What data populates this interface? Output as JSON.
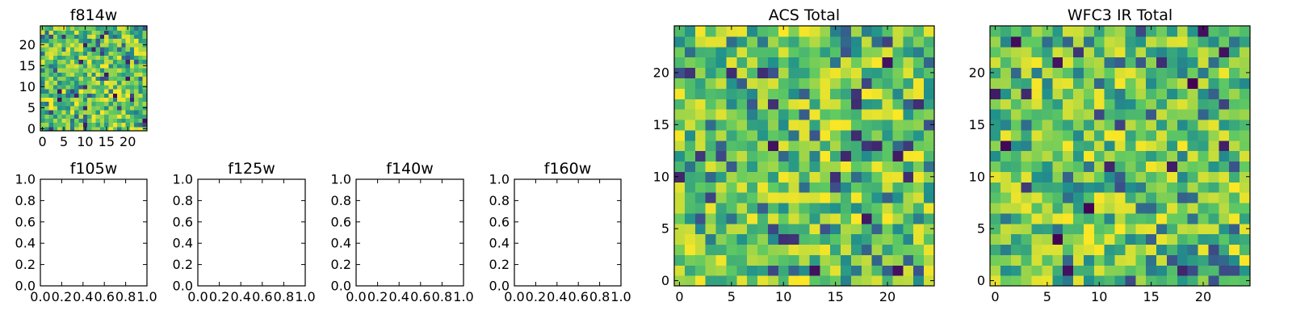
{
  "figure": {
    "background": "#ffffff",
    "colormap": "viridis",
    "colormap_stops": [
      "#440154",
      "#3b528b",
      "#21918c",
      "#5ec962",
      "#fde725"
    ]
  },
  "chart_data": [
    {
      "type": "heatmap",
      "title": "f814w",
      "xlim": [
        -0.5,
        24.5
      ],
      "ylim": [
        -0.5,
        24.5
      ],
      "xticks": [
        0,
        5,
        10,
        15,
        20
      ],
      "yticks": [
        0,
        5,
        10,
        15,
        20
      ],
      "grid": false,
      "grid_shape": [
        25,
        25
      ],
      "value_range": [
        0,
        1
      ],
      "seed": 814
    },
    {
      "type": "empty",
      "title": "f105w",
      "xlim": [
        0,
        1
      ],
      "ylim": [
        0,
        1
      ],
      "xticks": [
        "0.0",
        "0.2",
        "0.4",
        "0.6",
        "0.8",
        "1.0"
      ],
      "yticks": [
        "0.0",
        "0.2",
        "0.4",
        "0.6",
        "0.8",
        "1.0"
      ],
      "grid": false
    },
    {
      "type": "empty",
      "title": "f125w",
      "xlim": [
        0,
        1
      ],
      "ylim": [
        0,
        1
      ],
      "xticks": [
        "0.0",
        "0.2",
        "0.4",
        "0.6",
        "0.8",
        "1.0"
      ],
      "yticks": [
        "0.0",
        "0.2",
        "0.4",
        "0.6",
        "0.8",
        "1.0"
      ],
      "grid": false
    },
    {
      "type": "empty",
      "title": "f140w",
      "xlim": [
        0,
        1
      ],
      "ylim": [
        0,
        1
      ],
      "xticks": [
        "0.0",
        "0.2",
        "0.4",
        "0.6",
        "0.8",
        "1.0"
      ],
      "yticks": [
        "0.0",
        "0.2",
        "0.4",
        "0.6",
        "0.8",
        "1.0"
      ],
      "grid": false
    },
    {
      "type": "empty",
      "title": "f160w",
      "xlim": [
        0,
        1
      ],
      "ylim": [
        0,
        1
      ],
      "xticks": [
        "0.0",
        "0.2",
        "0.4",
        "0.6",
        "0.8",
        "1.0"
      ],
      "yticks": [
        "0.0",
        "0.2",
        "0.4",
        "0.6",
        "0.8",
        "1.0"
      ],
      "grid": false
    },
    {
      "type": "heatmap",
      "title": "ACS Total",
      "xlim": [
        -0.5,
        24.5
      ],
      "ylim": [
        -0.5,
        24.5
      ],
      "xticks": [
        0,
        5,
        10,
        15,
        20
      ],
      "yticks": [
        0,
        5,
        10,
        15,
        20
      ],
      "grid": false,
      "grid_shape": [
        25,
        25
      ],
      "value_range": [
        0,
        1
      ],
      "seed": 2718
    },
    {
      "type": "heatmap",
      "title": "WFC3 IR Total",
      "xlim": [
        -0.5,
        24.5
      ],
      "ylim": [
        -0.5,
        24.5
      ],
      "xticks": [
        0,
        5,
        10,
        15,
        20
      ],
      "yticks": [
        0,
        5,
        10,
        15,
        20
      ],
      "grid": false,
      "grid_shape": [
        25,
        25
      ],
      "value_range": [
        0,
        1
      ],
      "seed": 3141
    }
  ]
}
